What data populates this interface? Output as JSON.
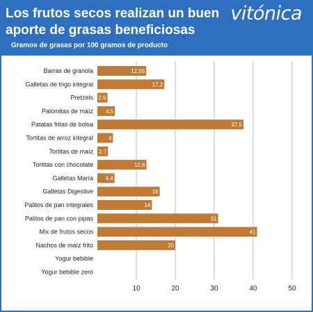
{
  "header": {
    "title": "Los frutos secos realizan un buen aporte de grasas beneficiosas",
    "subtitle": "Gramos de grasas por 100 gramos de producto",
    "brand": "vitónica"
  },
  "colors": {
    "background": "#2f6fc0",
    "bar": "#c07a35",
    "grid": "#a9c1e6",
    "panel": "#ffffff"
  },
  "chart_data": {
    "type": "bar",
    "orientation": "horizontal",
    "title": "Los frutos secos realizan un buen aporte de grasas beneficiosas",
    "subtitle": "Gramos de grasas por 100 gramos de producto",
    "xlabel": "",
    "ylabel": "",
    "xlim": [
      0,
      50
    ],
    "ticks": [
      10,
      20,
      30,
      40,
      50
    ],
    "grid": true,
    "categories": [
      "Barras de granola",
      "Galletas de trigo integral",
      "Pretzels",
      "Palomitas de maíz",
      "Patatas fritas de bolsa",
      "Tortitas de arroz integral",
      "Tortitas de maíz",
      "Tortitas con chocolate",
      "Galletas María",
      "Galletas Digestive",
      "Palitos de pan integrales",
      "Palitos de pan con pipas",
      "Mix de frutos secos",
      "Nachos de maíz frito",
      "Yogur bebible",
      "Yogur bebible zero"
    ],
    "values": [
      12.55,
      17.2,
      2.6,
      4.5,
      37.5,
      4,
      2.7,
      12.6,
      4.4,
      16,
      14,
      31,
      41,
      20,
      null,
      null
    ],
    "value_labels": [
      "12,55",
      "17,2",
      "2,6",
      "4,5",
      "37,5",
      "4",
      "2,7",
      "12,6",
      "4,4",
      "16",
      "14",
      "31",
      "41",
      "20",
      "",
      ""
    ]
  }
}
